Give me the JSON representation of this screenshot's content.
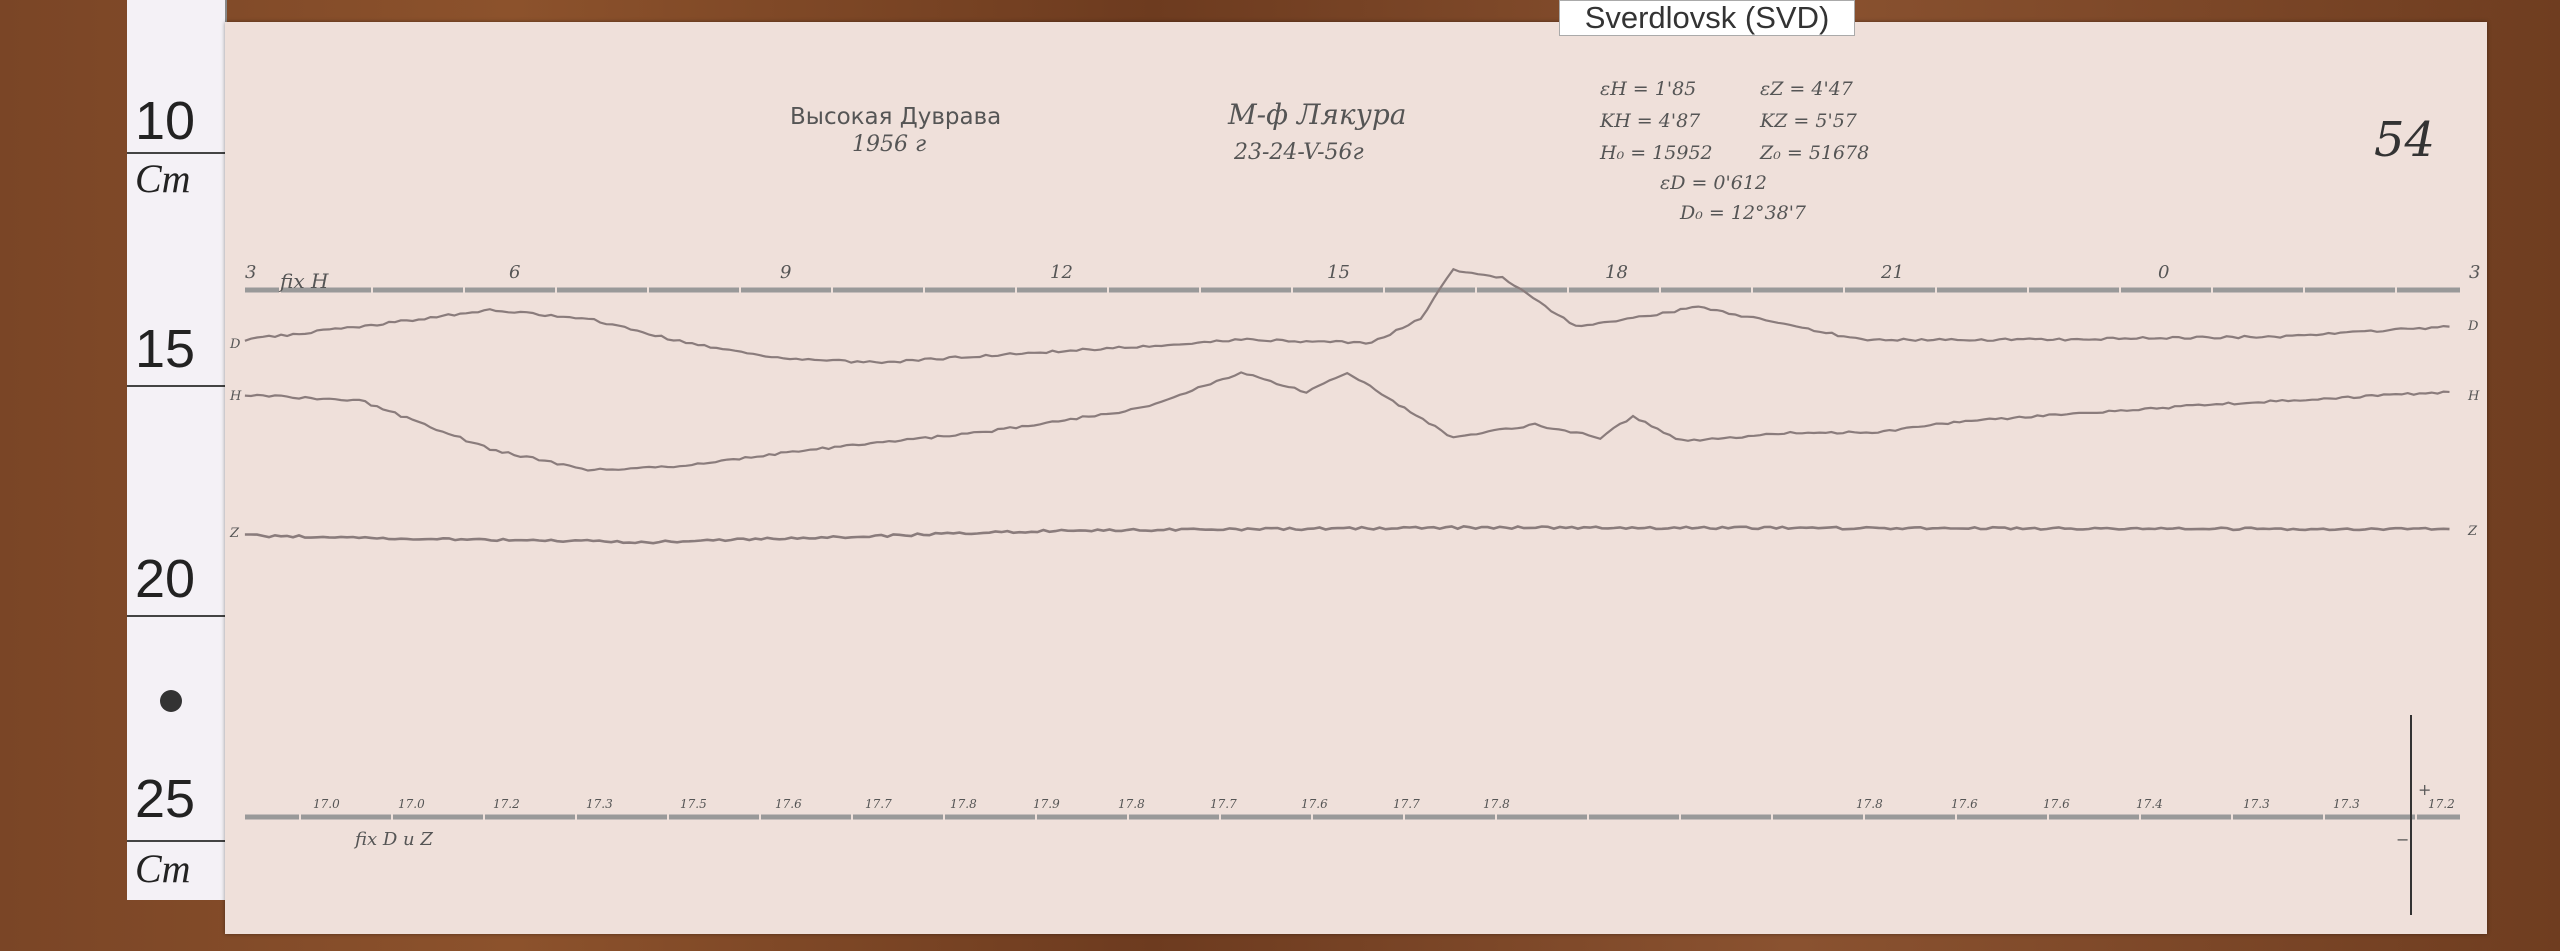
{
  "station_label": "Sverdlovsk (SVD)",
  "ruler": {
    "marks": [
      "10",
      "15",
      "20",
      "25"
    ],
    "unit": "Cm"
  },
  "header": {
    "place": "Высокая Дуврава",
    "year": "1956 г",
    "observer": "М-ф Лякура",
    "date": "23-24-V-56г",
    "sheet_number": "54"
  },
  "constants": [
    "εH = 1'85",
    "εZ = 4'47",
    "KH = 4'87",
    "KZ = 5'57",
    "H₀ = 15952",
    "Z₀ = 51678",
    "εD = 0'612",
    "D₀ = 12°38'7"
  ],
  "trace_labels": {
    "fix_top": "fix H",
    "d": "D",
    "h": "H",
    "z": "Z",
    "fix_bottom": "fix D и Z",
    "plus": "+",
    "minus": "−"
  },
  "hour_marks": [
    "3",
    "6",
    "9",
    "12",
    "15",
    "18",
    "21",
    "0",
    "3"
  ],
  "temperature_marks": [
    "17.0",
    "17.0",
    "17.2",
    "17.3",
    "17.5",
    "17.6",
    "17.7",
    "17.8",
    "17.9",
    "17.8",
    "17.7",
    "17.6",
    "17.7",
    "17.8",
    "17.8",
    "17.6",
    "17.6",
    "17.4",
    "17.3",
    "17.3",
    "17.2"
  ],
  "colors": {
    "paper": "#efe0da",
    "trace": "#8a7c7c",
    "ink": "#555555"
  }
}
